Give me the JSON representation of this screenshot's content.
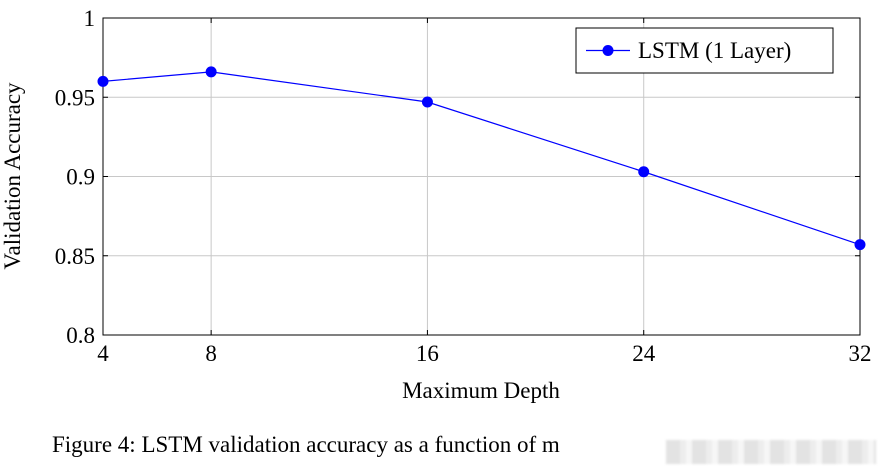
{
  "chart_data": {
    "type": "line",
    "xlabel": "Maximum Depth",
    "ylabel": "Validation Accuracy",
    "x_ticks": [
      4,
      8,
      16,
      24,
      32
    ],
    "y_ticks": [
      "0.8",
      "0.85",
      "0.9",
      "0.95",
      "1"
    ],
    "xlim": [
      4,
      32
    ],
    "ylim": [
      0.8,
      1.0
    ],
    "grid": true,
    "legend_position": "top-right",
    "series": [
      {
        "name": "LSTM (1 Layer)",
        "color": "#0000ff",
        "marker": "circle",
        "x": [
          4,
          8,
          16,
          24,
          32
        ],
        "y": [
          0.96,
          0.966,
          0.947,
          0.903,
          0.857
        ]
      }
    ]
  },
  "caption": "Figure 4: LSTM validation accuracy as a function of m"
}
